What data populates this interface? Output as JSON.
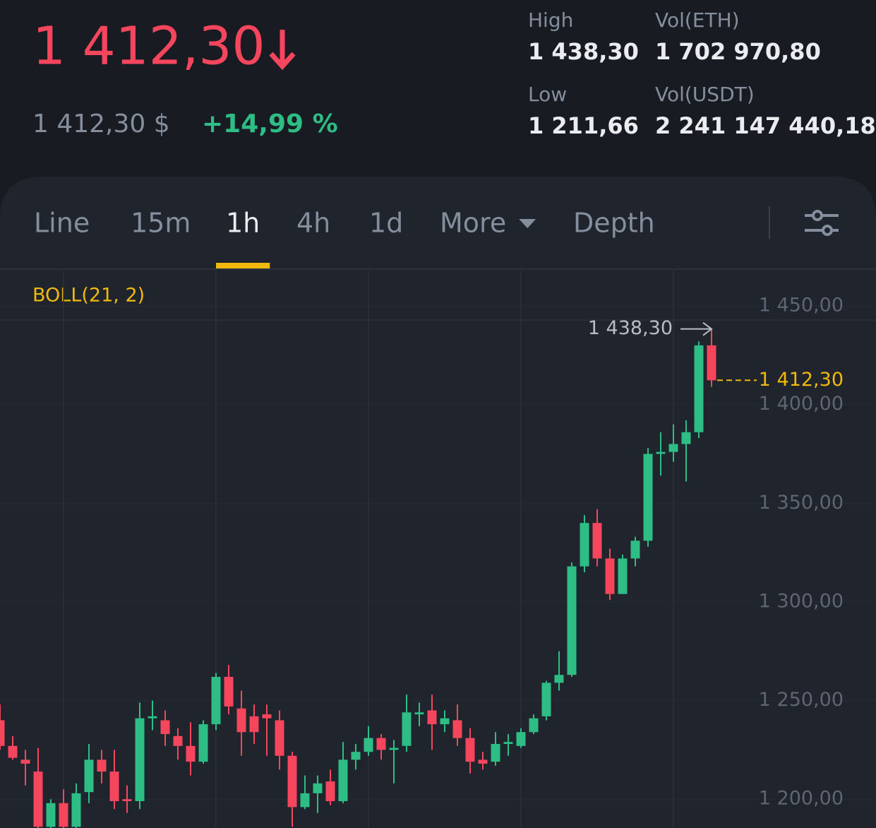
{
  "header": {
    "price": "1 412,30",
    "fiat_price": "1 412,30 $",
    "change": "+14,99 %",
    "stats": [
      {
        "label": "High",
        "value": "1 438,30"
      },
      {
        "label": "Vol(ETH)",
        "value": "1 702 970,80"
      },
      {
        "label": "Low",
        "value": "1 211,66"
      },
      {
        "label": "Vol(USDT)",
        "value": "2 241 147 440,18"
      }
    ]
  },
  "tabs": [
    "Line",
    "15m",
    "1h",
    "4h",
    "1d",
    "More",
    "Depth"
  ],
  "active_tab": "1h",
  "chart_data": {
    "type": "candlestick",
    "indicator": "BOLL(21, 2)",
    "open": [
      1240,
      1227,
      1220,
      1214,
      1186,
      1198,
      1186,
      1203.6,
      1220,
      1214,
      1200,
      1199,
      1241,
      1240,
      1232,
      1227,
      1219,
      1238,
      1262,
      1246,
      1242,
      1243,
      1240,
      1222,
      1196,
      1203,
      1209,
      1199,
      1220,
      1224,
      1231,
      1225,
      1227,
      1243,
      1245,
      1238,
      1240,
      1231,
      1220,
      1219,
      1228,
      1227,
      1234,
      1242,
      1259,
      1263,
      1318,
      1340,
      1322,
      1304,
      1322,
      1331,
      1375,
      1376,
      1380,
      1386,
      1430
    ],
    "high": [
      1248,
      1232,
      1225,
      1226,
      1200,
      1205,
      1208,
      1228,
      1225,
      1225,
      1207,
      1249,
      1250,
      1245,
      1236,
      1239,
      1240,
      1264,
      1268,
      1255,
      1248,
      1248,
      1245,
      1224,
      1212,
      1212,
      1215,
      1229,
      1228,
      1237,
      1233,
      1230,
      1253,
      1249,
      1253,
      1245,
      1248,
      1236,
      1224,
      1234,
      1233,
      1236,
      1243,
      1260,
      1275,
      1320,
      1344,
      1347,
      1327,
      1324,
      1333,
      1378,
      1386,
      1390,
      1392,
      1432,
      1438.3
    ],
    "low": [
      1225,
      1220,
      1207,
      1185,
      1185,
      1185,
      1185,
      1198,
      1208,
      1195,
      1193,
      1195,
      1235,
      1227,
      1220,
      1212,
      1218,
      1235,
      1243,
      1222,
      1228,
      1222,
      1215,
      1186,
      1195,
      1193,
      1197,
      1198,
      1215,
      1222,
      1220,
      1208,
      1224,
      1237,
      1225,
      1234,
      1227,
      1213,
      1215,
      1217,
      1222,
      1226,
      1233,
      1240,
      1255,
      1262,
      1315,
      1318,
      1301,
      1304,
      1318,
      1328,
      1364,
      1371,
      1361,
      1383,
      1409
    ],
    "close": [
      1227,
      1221,
      1218,
      1186,
      1198,
      1186,
      1203,
      1220,
      1214,
      1199,
      1199,
      1241,
      1242,
      1233,
      1227,
      1219,
      1238,
      1262,
      1247,
      1234,
      1234,
      1241,
      1222,
      1196,
      1203,
      1208,
      1199,
      1220,
      1224,
      1231,
      1225,
      1226,
      1244,
      1244,
      1238,
      1241,
      1231,
      1219,
      1218,
      1228,
      1229,
      1234,
      1241,
      1259,
      1263,
      1318,
      1340,
      1322,
      1304,
      1322,
      1331,
      1375,
      1376,
      1380,
      1386,
      1430,
      1412.3
    ],
    "ylim": [
      1185.4,
      1467.9
    ],
    "yticks": [
      {
        "value": 1200,
        "label": "1 200,00"
      },
      {
        "value": 1250,
        "label": "1 250,00"
      },
      {
        "value": 1300,
        "label": "1 300,00"
      },
      {
        "value": 1350,
        "label": "1 350,00"
      },
      {
        "value": 1400,
        "label": "1 400,00"
      },
      {
        "value": 1450,
        "label": "1 450,00"
      }
    ],
    "grid": true,
    "up_color": "#2ebd85",
    "down_color": "#f6465d",
    "high_marker": {
      "value": 1438.3,
      "label": "1 438,30"
    },
    "last_price": {
      "value": 1412.3,
      "label": "1 412,30",
      "color": "#f0b90b"
    }
  }
}
